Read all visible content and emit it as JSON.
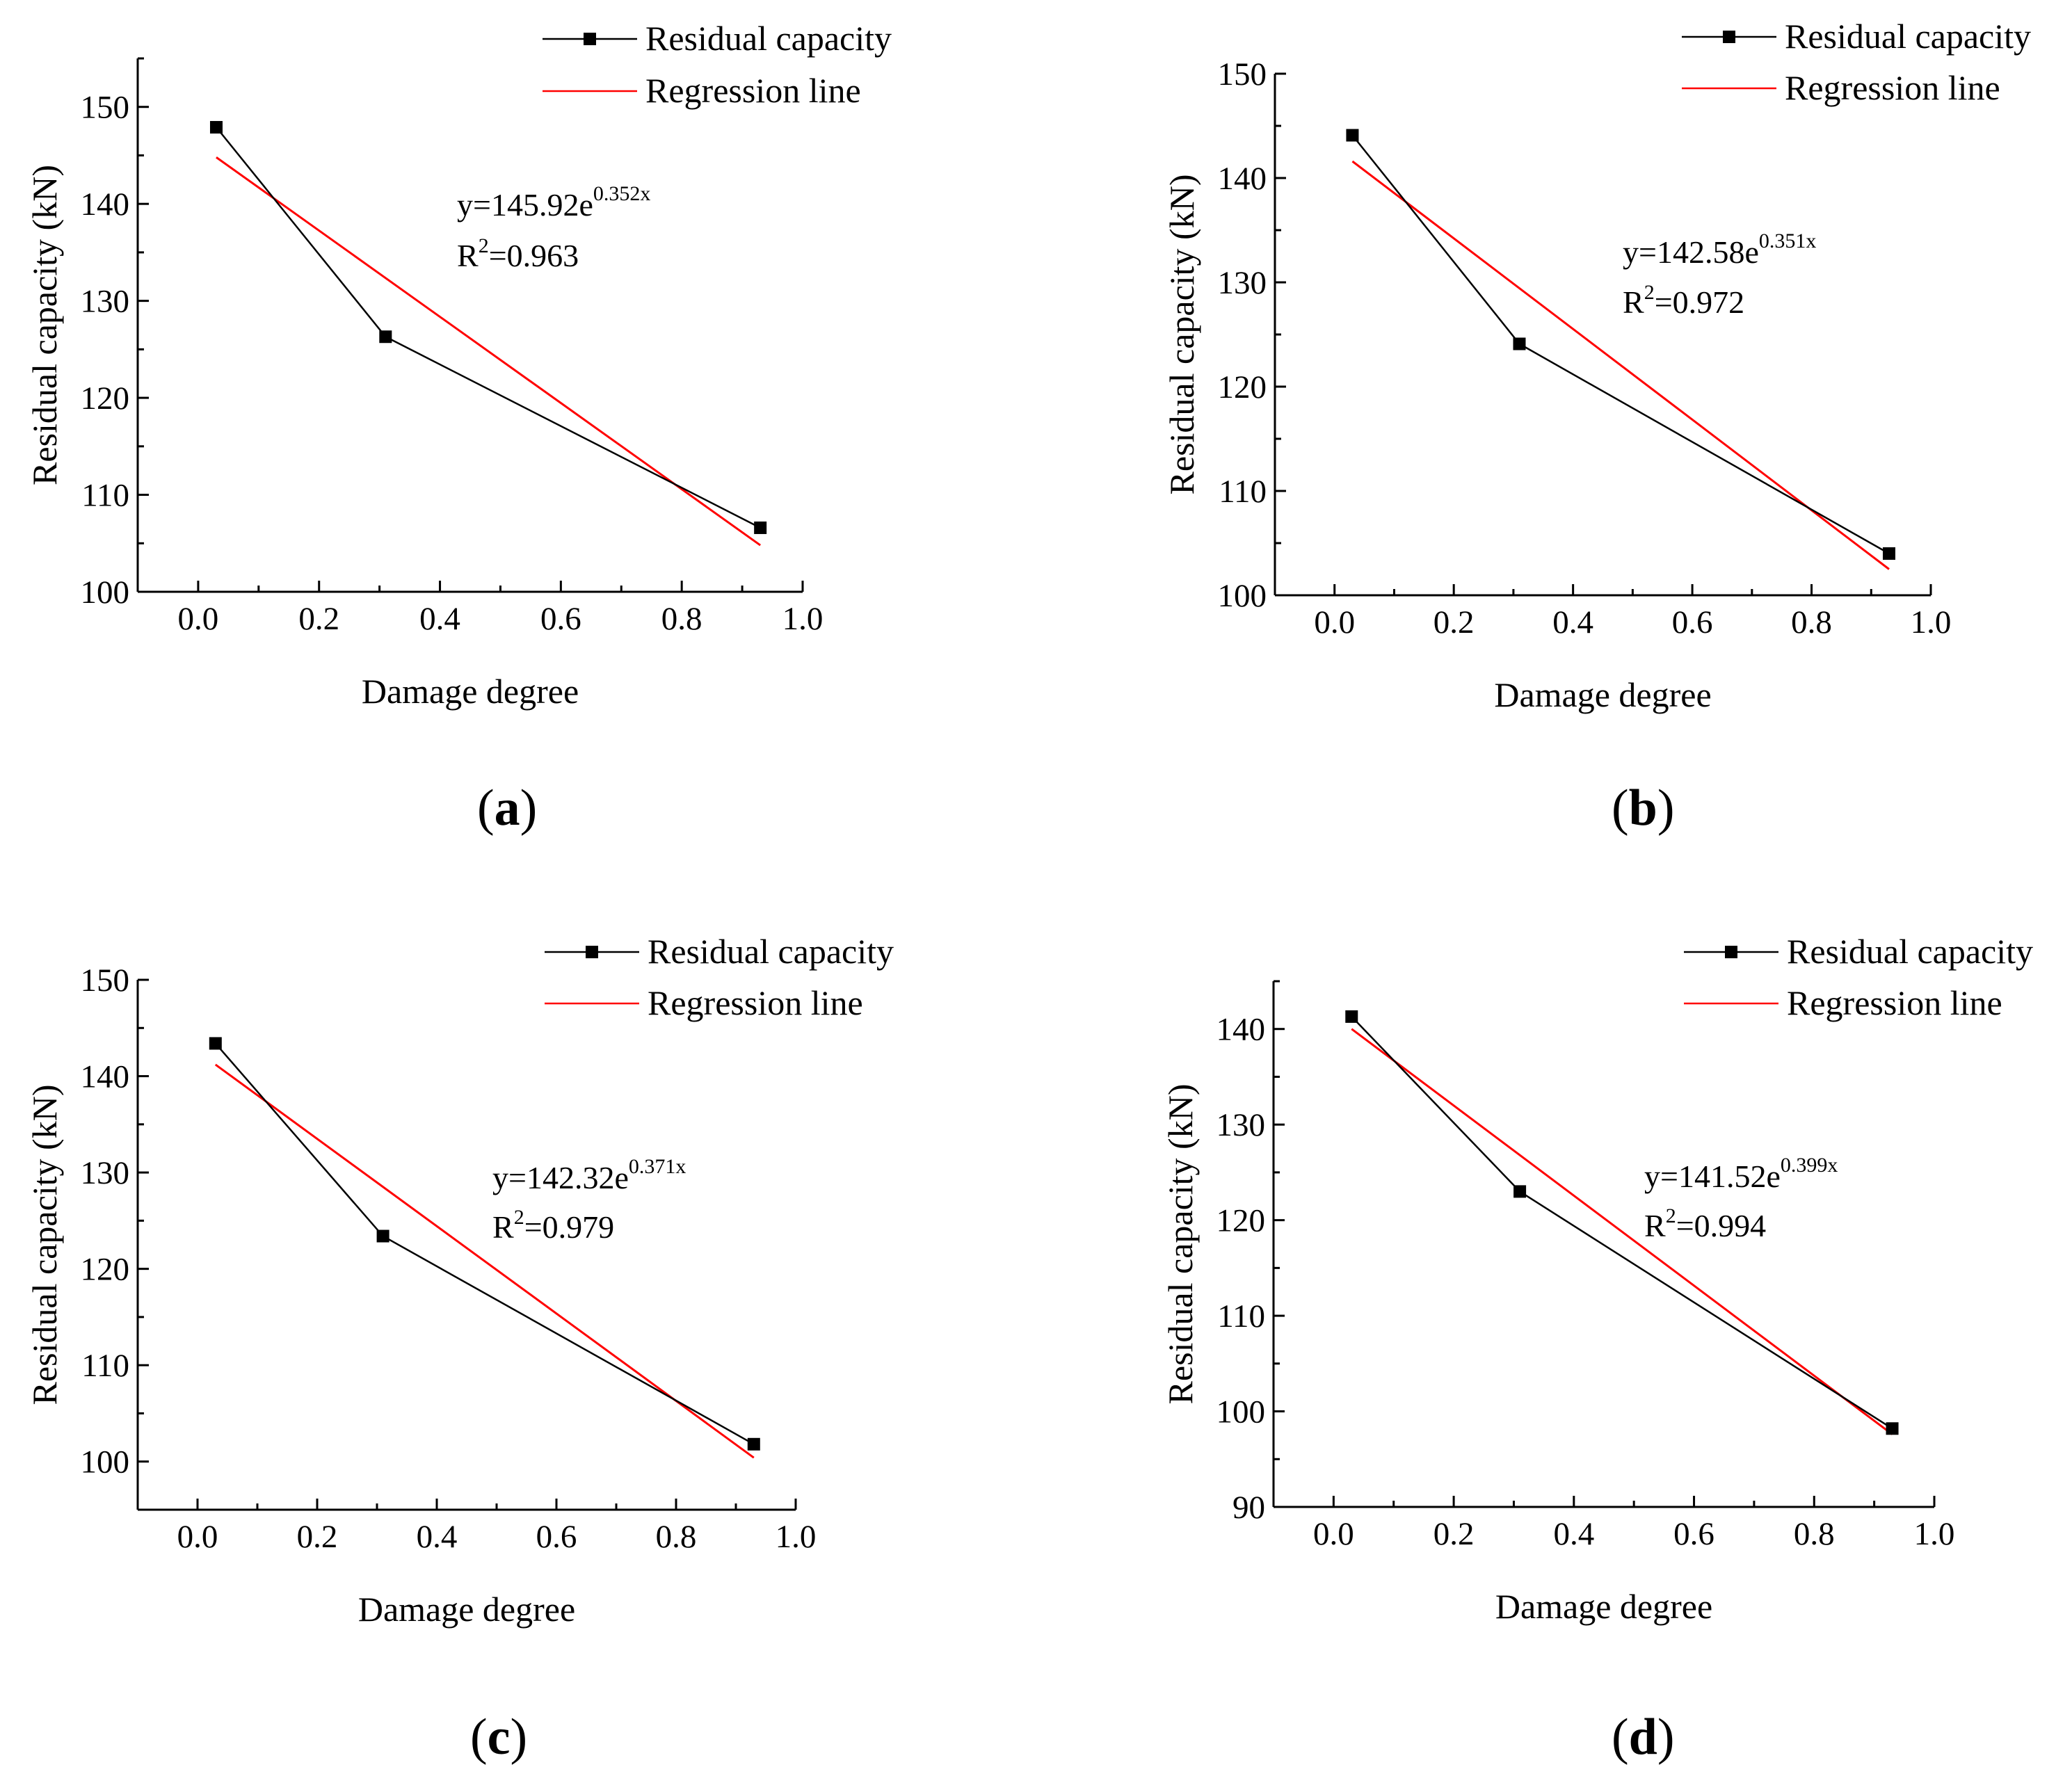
{
  "chart_data": [
    {
      "type": "line",
      "panel_label": "a",
      "xlabel": "Damage degree",
      "ylabel": "Residual capacity (kN)",
      "xlim": [
        -0.1,
        1.0
      ],
      "ylim": [
        100,
        155
      ],
      "xticks": [
        0.0,
        0.2,
        0.4,
        0.6,
        0.8,
        1.0
      ],
      "xtick_labels": [
        "0.0",
        "0.2",
        "0.4",
        "0.6",
        "0.8",
        "1.0"
      ],
      "yticks": [
        100,
        110,
        120,
        130,
        140,
        150
      ],
      "ytick_labels": [
        "100",
        "110",
        "120",
        "130",
        "140",
        "150"
      ],
      "series": [
        {
          "name": "Residual capacity",
          "color": "#000000",
          "marker": "square",
          "x": [
            0.03,
            0.31,
            0.93
          ],
          "y": [
            147.9,
            126.3,
            106.6
          ]
        },
        {
          "name": "Regression line",
          "color": "#ff0000",
          "marker": "none",
          "x": [
            0.03,
            0.93
          ],
          "y": [
            144.8,
            104.8
          ]
        }
      ],
      "equation": {
        "base": "y=145.92e",
        "exponent": "0.352x"
      },
      "r2": {
        "prefix": "R",
        "sup": "2",
        "value": "=0.963"
      },
      "legend_position": "top-right"
    },
    {
      "type": "line",
      "panel_label": "b",
      "xlabel": "Damage degree",
      "ylabel": "Residual capacity (kN)",
      "xlim": [
        -0.1,
        1.0
      ],
      "ylim": [
        100,
        150
      ],
      "xticks": [
        0.0,
        0.2,
        0.4,
        0.6,
        0.8,
        1.0
      ],
      "xtick_labels": [
        "0.0",
        "0.2",
        "0.4",
        "0.6",
        "0.8",
        "1.0"
      ],
      "yticks": [
        100,
        110,
        120,
        130,
        140,
        150
      ],
      "ytick_labels": [
        "100",
        "110",
        "120",
        "130",
        "140",
        "150"
      ],
      "series": [
        {
          "name": "Residual capacity",
          "color": "#000000",
          "marker": "square",
          "x": [
            0.03,
            0.31,
            0.93
          ],
          "y": [
            144.1,
            124.1,
            104.0
          ]
        },
        {
          "name": "Regression line",
          "color": "#ff0000",
          "marker": "none",
          "x": [
            0.03,
            0.93
          ],
          "y": [
            141.6,
            102.5
          ]
        }
      ],
      "equation": {
        "base": "y=142.58e",
        "exponent": "0.351x"
      },
      "r2": {
        "prefix": "R",
        "sup": "2",
        "value": "=0.972"
      },
      "legend_position": "top-right"
    },
    {
      "type": "line",
      "panel_label": "c",
      "xlabel": "Damage degree",
      "ylabel": "Residual capacity (kN)",
      "xlim": [
        -0.1,
        1.0
      ],
      "ylim": [
        95,
        150
      ],
      "xticks": [
        0.0,
        0.2,
        0.4,
        0.6,
        0.8,
        1.0
      ],
      "xtick_labels": [
        "0.0",
        "0.2",
        "0.4",
        "0.6",
        "0.8",
        "1.0"
      ],
      "yticks": [
        100,
        110,
        120,
        130,
        140,
        150
      ],
      "ytick_labels": [
        "100",
        "110",
        "120",
        "130",
        "140",
        "150"
      ],
      "series": [
        {
          "name": "Residual capacity",
          "color": "#000000",
          "marker": "square",
          "x": [
            0.03,
            0.31,
            0.93
          ],
          "y": [
            143.4,
            123.4,
            101.8
          ]
        },
        {
          "name": "Regression line",
          "color": "#ff0000",
          "marker": "none",
          "x": [
            0.03,
            0.93
          ],
          "y": [
            141.2,
            100.4
          ]
        }
      ],
      "equation": {
        "base": "y=142.32e",
        "exponent": "0.371x"
      },
      "r2": {
        "prefix": "R",
        "sup": "2",
        "value": "=0.979"
      },
      "legend_position": "top-right"
    },
    {
      "type": "line",
      "panel_label": "d",
      "xlabel": "Damage degree",
      "ylabel": "Residual capacity (kN)",
      "xlim": [
        -0.1,
        1.0
      ],
      "ylim": [
        90,
        145
      ],
      "xticks": [
        0.0,
        0.2,
        0.4,
        0.6,
        0.8,
        1.0
      ],
      "xtick_labels": [
        "0.0",
        "0.2",
        "0.4",
        "0.6",
        "0.8",
        "1.0"
      ],
      "yticks": [
        90,
        100,
        110,
        120,
        130,
        140
      ],
      "ytick_labels": [
        "90",
        "100",
        "110",
        "120",
        "130",
        "140"
      ],
      "series": [
        {
          "name": "Residual capacity",
          "color": "#000000",
          "marker": "square",
          "x": [
            0.03,
            0.31,
            0.93
          ],
          "y": [
            141.3,
            123.0,
            98.2
          ]
        },
        {
          "name": "Regression line",
          "color": "#ff0000",
          "marker": "none",
          "x": [
            0.03,
            0.93
          ],
          "y": [
            140.0,
            97.6
          ]
        }
      ],
      "equation": {
        "base": "y=141.52e",
        "exponent": "0.399x"
      },
      "r2": {
        "prefix": "R",
        "sup": "2",
        "value": "=0.994"
      },
      "legend_position": "top-right"
    }
  ]
}
